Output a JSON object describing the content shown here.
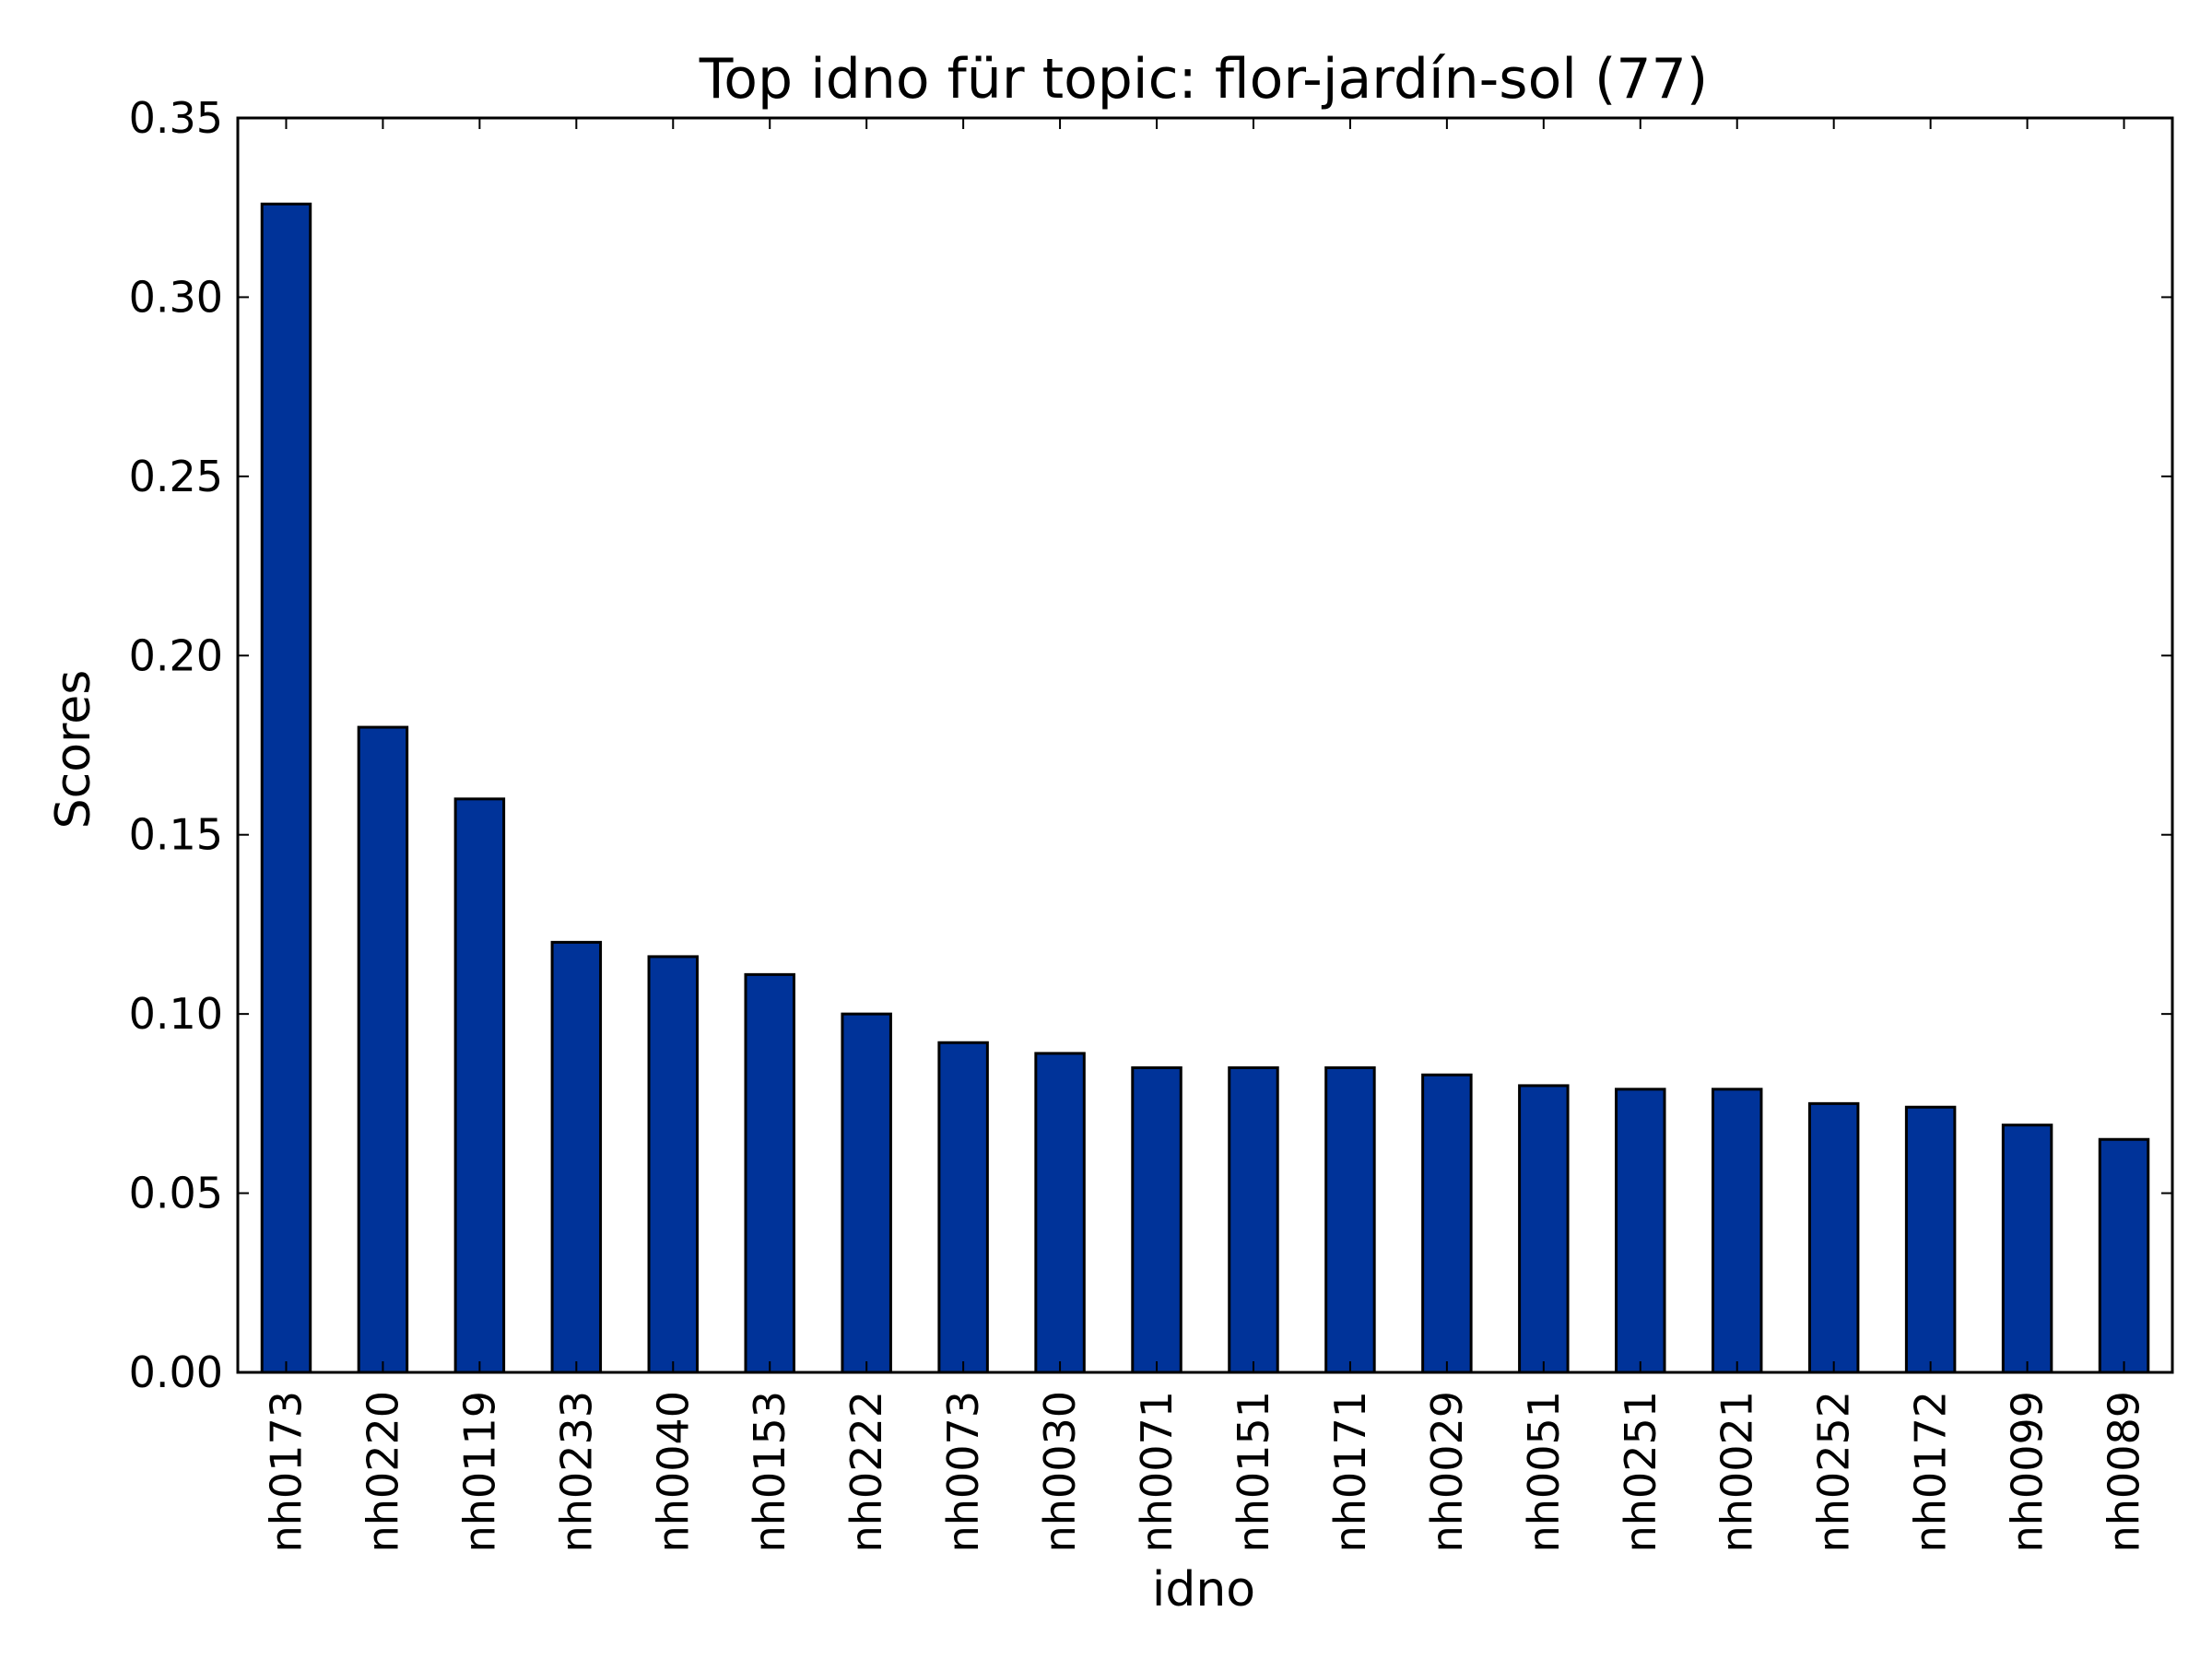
{
  "chart_data": {
    "type": "bar",
    "title": "Top idno für topic: flor-jardín-sol (77)",
    "xlabel": "idno",
    "ylabel": "Scores",
    "ylim": [
      0,
      0.35
    ],
    "yticks": [
      "0.00",
      "0.05",
      "0.10",
      "0.15",
      "0.20",
      "0.25",
      "0.30",
      "0.35"
    ],
    "categories": [
      "nh0173",
      "nh0220",
      "nh0119",
      "nh0233",
      "nh0040",
      "nh0153",
      "nh0222",
      "nh0073",
      "nh0030",
      "nh0071",
      "nh0151",
      "nh0171",
      "nh0029",
      "nh0051",
      "nh0251",
      "nh0021",
      "nh0252",
      "nh0172",
      "nh0099",
      "nh0089"
    ],
    "values": [
      0.326,
      0.18,
      0.16,
      0.12,
      0.116,
      0.111,
      0.1,
      0.092,
      0.089,
      0.085,
      0.085,
      0.085,
      0.083,
      0.08,
      0.079,
      0.079,
      0.075,
      0.074,
      0.069,
      0.065
    ],
    "bar_color": "#003399",
    "grid": false,
    "legend": "none"
  }
}
